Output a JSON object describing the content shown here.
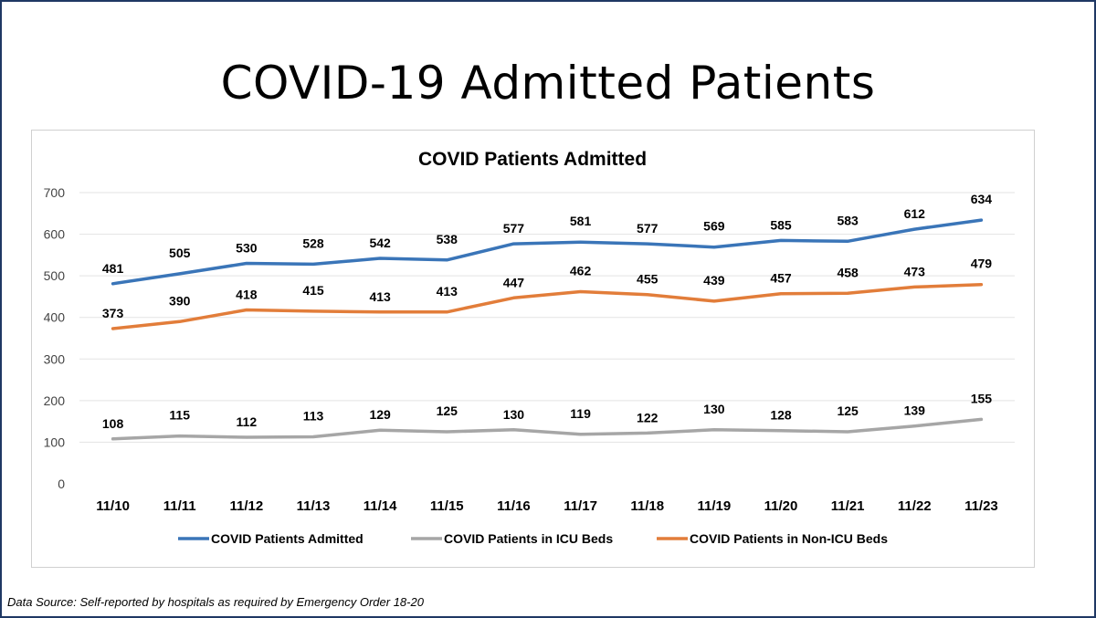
{
  "slide": {
    "title": "COVID-19 Admitted Patients",
    "source_note": "Data Source: Self-reported by hospitals as required by Emergency Order 18-20"
  },
  "chart_data": {
    "type": "line",
    "title": "COVID Patients Admitted",
    "xlabel": "",
    "ylabel": "",
    "categories": [
      "11/10",
      "11/11",
      "11/12",
      "11/13",
      "11/14",
      "11/15",
      "11/16",
      "11/17",
      "11/18",
      "11/19",
      "11/20",
      "11/21",
      "11/22",
      "11/23"
    ],
    "ylim": [
      0,
      700
    ],
    "yticks": [
      0,
      100,
      200,
      300,
      400,
      500,
      600,
      700
    ],
    "grid": true,
    "legend_position": "bottom",
    "series": [
      {
        "name": "COVID Patients Admitted",
        "color": "#3a75b8",
        "label_position": "above",
        "values": [
          481,
          505,
          530,
          528,
          542,
          538,
          577,
          581,
          577,
          569,
          585,
          583,
          612,
          634
        ]
      },
      {
        "name": "COVID Patients in ICU Beds",
        "color": "#a6a6a6",
        "label_position": "above",
        "values": [
          108,
          115,
          112,
          113,
          129,
          125,
          130,
          119,
          122,
          130,
          128,
          125,
          139,
          155
        ]
      },
      {
        "name": "COVID Patients in Non-ICU Beds",
        "color": "#e27d3a",
        "label_position": "above",
        "values": [
          373,
          390,
          418,
          415,
          413,
          413,
          447,
          462,
          455,
          439,
          457,
          458,
          473,
          479
        ]
      }
    ]
  }
}
